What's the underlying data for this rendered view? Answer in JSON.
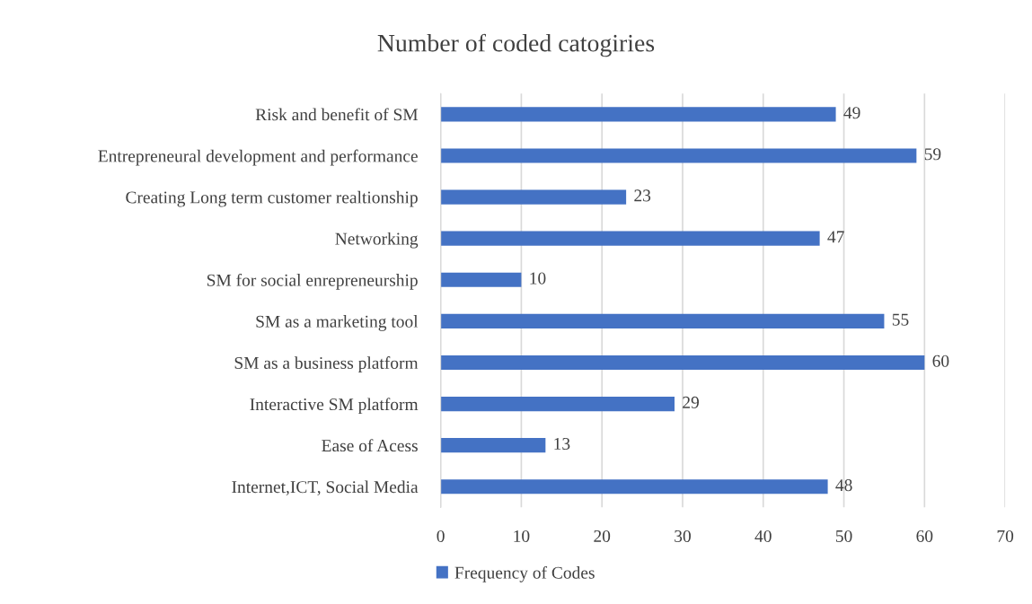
{
  "chart_data": {
    "type": "bar",
    "orientation": "horizontal",
    "title": "Number of coded catogiries",
    "categories": [
      "Risk and benefit of SM",
      "Entrepreneural development and performance",
      "Creating Long term customer realtionship",
      "Networking",
      "SM for social enrepreneurship",
      "SM as a marketing tool",
      "SM as a business platform",
      "Interactive SM platform",
      "Ease of Acess",
      "Internet,ICT, Social Media"
    ],
    "series": [
      {
        "name": "Frequency of Codes",
        "color": "#4472c4",
        "values": [
          49,
          59,
          23,
          47,
          10,
          55,
          60,
          29,
          13,
          48
        ]
      }
    ],
    "xlim": [
      0,
      70
    ],
    "xticks": [
      0,
      10,
      20,
      30,
      40,
      50,
      60,
      70
    ],
    "grid": "x",
    "legend": "bottom",
    "data_labels": true
  }
}
